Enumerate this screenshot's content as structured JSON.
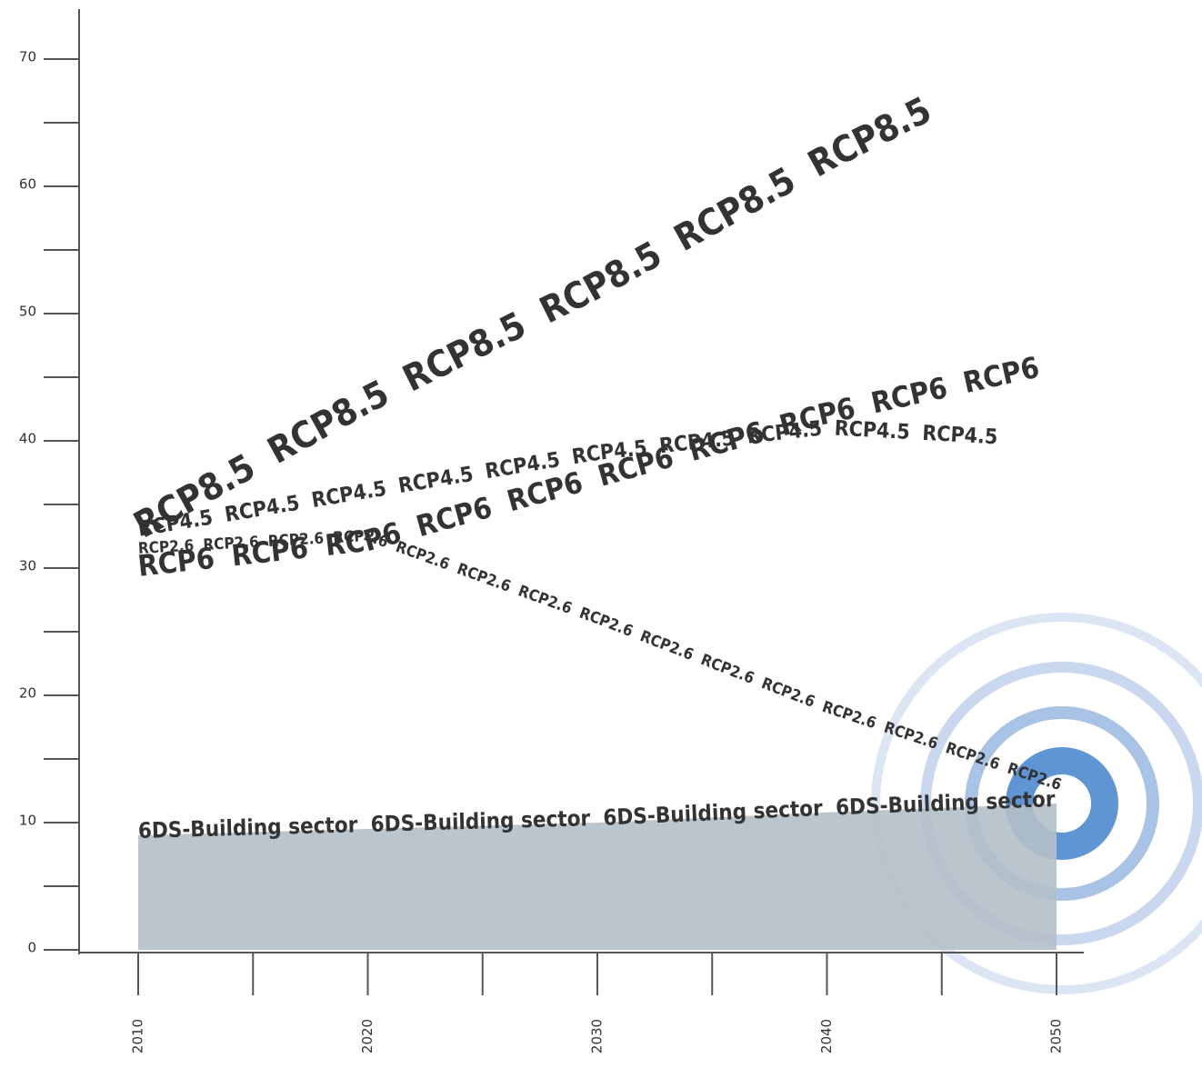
{
  "chart_data": {
    "type": "text-line",
    "x": [
      2010,
      2020,
      2030,
      2040,
      2050
    ],
    "xlim": [
      2007.5,
      2053
    ],
    "xticks": [
      2010,
      2020,
      2030,
      2040,
      2050
    ],
    "xminorticks": [
      2015,
      2025,
      2035,
      2045
    ],
    "ylim": [
      0,
      73
    ],
    "yticks": [
      0,
      10,
      20,
      30,
      40,
      50,
      60,
      70
    ],
    "yminorticks": [
      5,
      15,
      25,
      35,
      45,
      55,
      65
    ],
    "area": {
      "name": "6DS-Building sector",
      "color": "#b4bfc8",
      "label_color": "#2f3f55",
      "values": [
        9,
        9.5,
        10,
        10.8,
        11.5
      ]
    },
    "series": [
      {
        "name": "RCP8.5",
        "color": "#2a0f12",
        "values": [
          33,
          43,
          52,
          62,
          71
        ]
      },
      {
        "name": "RCP6",
        "color": "#6a1f12",
        "values": [
          30,
          32,
          37,
          42,
          46
        ]
      },
      {
        "name": "RCP4.5",
        "color": "#ef8c2a",
        "values": [
          33,
          36,
          39,
          41,
          40
        ]
      },
      {
        "name": "RCP2.6",
        "color": "#b8d63a",
        "values": [
          31.5,
          32.5,
          26,
          19,
          13
        ]
      }
    ]
  }
}
